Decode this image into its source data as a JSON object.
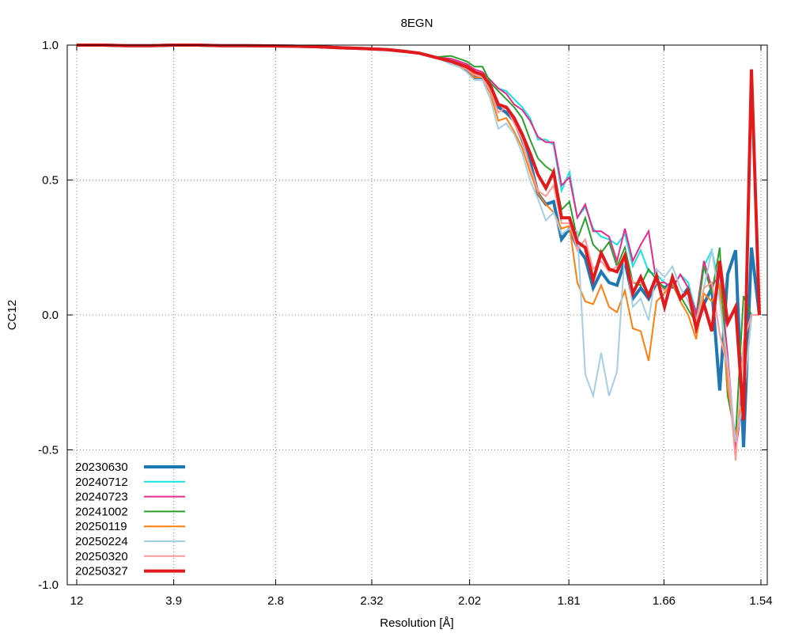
{
  "chart_data": {
    "type": "line",
    "title": "8EGN",
    "xlabel": "Resolution [Å]",
    "ylabel": "CC12",
    "x_scale": "1/d^2",
    "xlim": [
      0.0012,
      0.4255
    ],
    "ylim": [
      -1.0,
      1.0
    ],
    "grid": true,
    "legend_position": "bottom-left",
    "xticks": [
      {
        "label": "12",
        "value": 0.006944
      },
      {
        "label": "3.9",
        "value": 0.065746
      },
      {
        "label": "2.8",
        "value": 0.127551
      },
      {
        "label": "2.32",
        "value": 0.185791
      },
      {
        "label": "2.02",
        "value": 0.245074
      },
      {
        "label": "1.81",
        "value": 0.305241
      },
      {
        "label": "1.66",
        "value": 0.362898
      },
      {
        "label": "1.54",
        "value": 0.421656
      }
    ],
    "yticks": [
      {
        "label": "1.0",
        "value": 1.0
      },
      {
        "label": "0.5",
        "value": 0.5
      },
      {
        "label": "0.0",
        "value": 0.0
      },
      {
        "label": "-0.5",
        "value": -0.5
      },
      {
        "label": "-1.0",
        "value": -1.0
      }
    ],
    "x": [
      0.0069,
      0.0228,
      0.0372,
      0.0515,
      0.0659,
      0.0803,
      0.0947,
      0.1091,
      0.1234,
      0.1378,
      0.1522,
      0.1666,
      0.181,
      0.1954,
      0.205,
      0.2145,
      0.2241,
      0.2337,
      0.2385,
      0.2433,
      0.2481,
      0.2529,
      0.2577,
      0.2625,
      0.2673,
      0.2721,
      0.2769,
      0.2817,
      0.2865,
      0.2913,
      0.296,
      0.3008,
      0.3056,
      0.3104,
      0.3152,
      0.32,
      0.3248,
      0.3296,
      0.3344,
      0.3392,
      0.344,
      0.3488,
      0.3536,
      0.3584,
      0.3632,
      0.368,
      0.3728,
      0.3776,
      0.3824,
      0.3871,
      0.3919,
      0.3967,
      0.4015,
      0.4063,
      0.4111,
      0.4159,
      0.4207
    ],
    "series": [
      {
        "name": "20230630",
        "color": "#1f77b4",
        "width": 4,
        "values": [
          1,
          1,
          0.998,
          0.998,
          1,
          1,
          0.998,
          0.998,
          0.997,
          0.996,
          0.994,
          0.99,
          0.987,
          0.983,
          0.977,
          0.97,
          0.955,
          0.94,
          0.93,
          0.91,
          0.88,
          0.88,
          0.83,
          0.77,
          0.75,
          0.72,
          0.65,
          0.57,
          0.45,
          0.41,
          0.42,
          0.28,
          0.32,
          0.25,
          0.21,
          0.1,
          0.16,
          0.12,
          0.11,
          0.2,
          0.06,
          0.1,
          0.06,
          0.12,
          0.1,
          0.12,
          0.06,
          0.1,
          0.0,
          0.04,
          0.1,
          -0.28,
          0.15,
          0.24,
          -0.49,
          0.25,
          0
        ]
      },
      {
        "name": "20240712",
        "color": "#17e3e3",
        "width": 2,
        "values": [
          1,
          1,
          0.998,
          0.998,
          1,
          1,
          0.998,
          0.998,
          0.997,
          0.996,
          0.994,
          0.99,
          0.987,
          0.983,
          0.977,
          0.97,
          0.955,
          0.95,
          0.94,
          0.93,
          0.91,
          0.9,
          0.87,
          0.84,
          0.83,
          0.8,
          0.77,
          0.73,
          0.65,
          0.65,
          0.63,
          0.46,
          0.53,
          0.36,
          0.4,
          0.32,
          0.29,
          0.28,
          0.26,
          0.3,
          0.18,
          0.24,
          0.16,
          0.15,
          0.12,
          0.1,
          0.15,
          0.12,
          0.0,
          0.18,
          0.24,
          0.1,
          -0.29,
          -0.44,
          -0.32,
          0,
          0
        ]
      },
      {
        "name": "20240723",
        "color": "#e7298a",
        "width": 2,
        "values": [
          1,
          1,
          0.998,
          0.998,
          1,
          1,
          0.998,
          0.998,
          0.997,
          0.996,
          0.994,
          0.99,
          0.987,
          0.983,
          0.977,
          0.97,
          0.955,
          0.95,
          0.94,
          0.93,
          0.91,
          0.9,
          0.87,
          0.84,
          0.82,
          0.78,
          0.76,
          0.72,
          0.66,
          0.64,
          0.64,
          0.48,
          0.51,
          0.36,
          0.41,
          0.31,
          0.31,
          0.29,
          0.2,
          0.32,
          0.2,
          0.26,
          0.31,
          0.12,
          0.12,
          0.1,
          0.15,
          0.1,
          0.0,
          0.2,
          0.1,
          0.16,
          -0.15,
          -0.5,
          -0.3,
          0,
          0
        ]
      },
      {
        "name": "20241002",
        "color": "#2ca02c",
        "width": 2,
        "values": [
          1,
          1,
          0.998,
          0.998,
          1,
          1,
          0.998,
          0.998,
          0.997,
          0.996,
          0.994,
          0.99,
          0.987,
          0.983,
          0.977,
          0.97,
          0.955,
          0.96,
          0.95,
          0.94,
          0.92,
          0.92,
          0.86,
          0.83,
          0.8,
          0.77,
          0.73,
          0.65,
          0.58,
          0.55,
          0.53,
          0.39,
          0.42,
          0.28,
          0.36,
          0.26,
          0.23,
          0.27,
          0.18,
          0.25,
          0.12,
          0.11,
          0.17,
          0.13,
          0.1,
          0.11,
          0.07,
          0.02,
          -0.03,
          0.18,
          0.08,
          0.25,
          -0.3,
          -0.45,
          0.07,
          0,
          0
        ]
      },
      {
        "name": "20250119",
        "color": "#ff7f0e",
        "width": 2,
        "values": [
          1,
          1,
          0.998,
          0.998,
          1,
          1,
          0.998,
          0.998,
          0.997,
          0.996,
          0.994,
          0.99,
          0.987,
          0.983,
          0.977,
          0.97,
          0.955,
          0.94,
          0.92,
          0.91,
          0.88,
          0.88,
          0.82,
          0.72,
          0.73,
          0.68,
          0.62,
          0.53,
          0.45,
          0.41,
          0.38,
          0.32,
          0.33,
          0.12,
          0.05,
          0.04,
          0.11,
          0.03,
          0.01,
          0.09,
          -0.05,
          -0.06,
          -0.17,
          0.05,
          0.08,
          0.12,
          0.05,
          0.0,
          -0.09,
          0.08,
          0.05,
          0.11,
          -0.27,
          -0.45,
          -0.3,
          0,
          0
        ]
      },
      {
        "name": "20250224",
        "color": "#a6cee3",
        "width": 2,
        "values": [
          1,
          1,
          0.998,
          0.998,
          1,
          1,
          0.998,
          0.998,
          0.997,
          0.996,
          0.994,
          0.99,
          0.987,
          0.983,
          0.977,
          0.97,
          0.955,
          0.93,
          0.92,
          0.9,
          0.87,
          0.87,
          0.8,
          0.69,
          0.71,
          0.67,
          0.6,
          0.5,
          0.43,
          0.35,
          0.38,
          0.3,
          0.32,
          0.31,
          -0.22,
          -0.3,
          -0.14,
          -0.3,
          -0.21,
          0.24,
          0.03,
          0.06,
          -0.02,
          0.17,
          0.14,
          0.18,
          0.1,
          0.05,
          -0.04,
          0.1,
          0.24,
          0.05,
          -0.18,
          -0.47,
          -0.32,
          0,
          0
        ]
      },
      {
        "name": "20250320",
        "color": "#fb9a99",
        "width": 2,
        "values": [
          1,
          1,
          0.998,
          0.998,
          1,
          1,
          0.998,
          0.998,
          0.997,
          0.996,
          0.994,
          0.99,
          0.987,
          0.983,
          0.977,
          0.97,
          0.955,
          0.94,
          0.93,
          0.91,
          0.89,
          0.88,
          0.83,
          0.75,
          0.77,
          0.71,
          0.65,
          0.55,
          0.46,
          0.44,
          0.48,
          0.34,
          0.34,
          0.24,
          0.28,
          0.17,
          0.2,
          0.16,
          0.18,
          0.2,
          0.12,
          0.12,
          0.08,
          0.12,
          0.09,
          0.12,
          0.07,
          0.08,
          -0.02,
          0.1,
          0.12,
          -0.07,
          -0.2,
          -0.54,
          -0.1,
          0,
          0
        ]
      },
      {
        "name": "20250327",
        "color": "#e31a1c",
        "width": 4,
        "values": [
          1,
          1,
          0.998,
          0.998,
          1,
          1,
          0.998,
          0.998,
          0.997,
          0.996,
          0.994,
          0.99,
          0.987,
          0.983,
          0.977,
          0.97,
          0.955,
          0.94,
          0.93,
          0.92,
          0.9,
          0.89,
          0.85,
          0.78,
          0.77,
          0.73,
          0.67,
          0.6,
          0.52,
          0.47,
          0.53,
          0.36,
          0.36,
          0.27,
          0.25,
          0.13,
          0.23,
          0.17,
          0.16,
          0.22,
          0.08,
          0.14,
          0.07,
          0.145,
          0.03,
          0.14,
          0.06,
          0.09,
          -0.05,
          0.04,
          -0.06,
          0.2,
          -0.03,
          0.03,
          -0.39,
          0.91,
          0
        ]
      }
    ]
  }
}
